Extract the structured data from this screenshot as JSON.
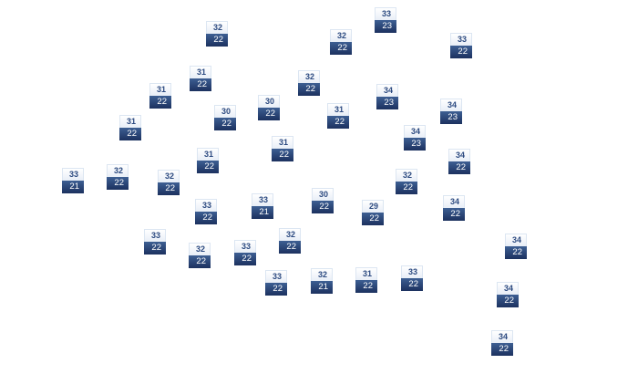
{
  "markers": [
    {
      "high": "32",
      "low": "22"
    },
    {
      "high": "33",
      "low": "23"
    },
    {
      "high": "32",
      "low": "22"
    },
    {
      "high": "33",
      "low": "22"
    },
    {
      "high": "31",
      "low": "22"
    },
    {
      "high": "31",
      "low": "22"
    },
    {
      "high": "32",
      "low": "22"
    },
    {
      "high": "30",
      "low": "22"
    },
    {
      "high": "30",
      "low": "22"
    },
    {
      "high": "34",
      "low": "23"
    },
    {
      "high": "31",
      "low": "22"
    },
    {
      "high": "34",
      "low": "23"
    },
    {
      "high": "31",
      "low": "22"
    },
    {
      "high": "34",
      "low": "23"
    },
    {
      "high": "31",
      "low": "22"
    },
    {
      "high": "31",
      "low": "22"
    },
    {
      "high": "34",
      "low": "22"
    },
    {
      "high": "33",
      "low": "21"
    },
    {
      "high": "32",
      "low": "22"
    },
    {
      "high": "32",
      "low": "22"
    },
    {
      "high": "32",
      "low": "22"
    },
    {
      "high": "30",
      "low": "22"
    },
    {
      "high": "33",
      "low": "21"
    },
    {
      "high": "33",
      "low": "22"
    },
    {
      "high": "29",
      "low": "22"
    },
    {
      "high": "34",
      "low": "22"
    },
    {
      "high": "33",
      "low": "22"
    },
    {
      "high": "32",
      "low": "22"
    },
    {
      "high": "33",
      "low": "22"
    },
    {
      "high": "32",
      "low": "22"
    },
    {
      "high": "34",
      "low": "22"
    },
    {
      "high": "33",
      "low": "22"
    },
    {
      "high": "32",
      "low": "21"
    },
    {
      "high": "31",
      "low": "22"
    },
    {
      "high": "33",
      "low": "22"
    },
    {
      "high": "34",
      "low": "22"
    },
    {
      "high": "34",
      "low": "22"
    }
  ],
  "colors": {
    "high_text": "#2c4a80",
    "low_bg": "#1c315f",
    "low_text": "#ffffff"
  }
}
